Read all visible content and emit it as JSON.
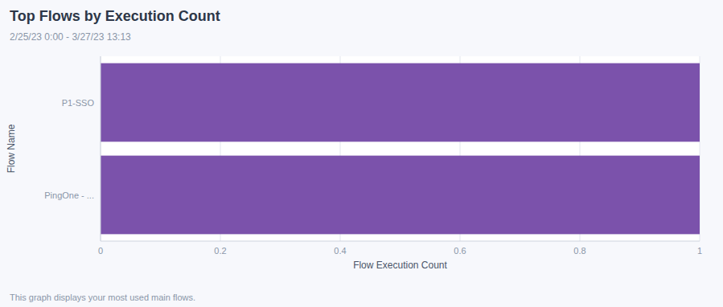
{
  "chart_data": {
    "type": "bar",
    "orientation": "horizontal",
    "title": "Top Flows by Execution Count",
    "subtitle": "2/25/23 0:00 - 3/27/23 13:13",
    "annotations": [
      "This graph displays your most used main flows."
    ],
    "categories": [
      "PingOne - ...",
      "P1-SSO"
    ],
    "values": [
      1,
      1
    ],
    "color": "#7B52AB",
    "x_label": "Flow Execution Count",
    "y_label": "Flow Name",
    "xlim": [
      0,
      1
    ],
    "xticks": [
      0,
      0.2,
      0.4,
      0.6,
      0.8,
      1
    ],
    "grid": true
  }
}
